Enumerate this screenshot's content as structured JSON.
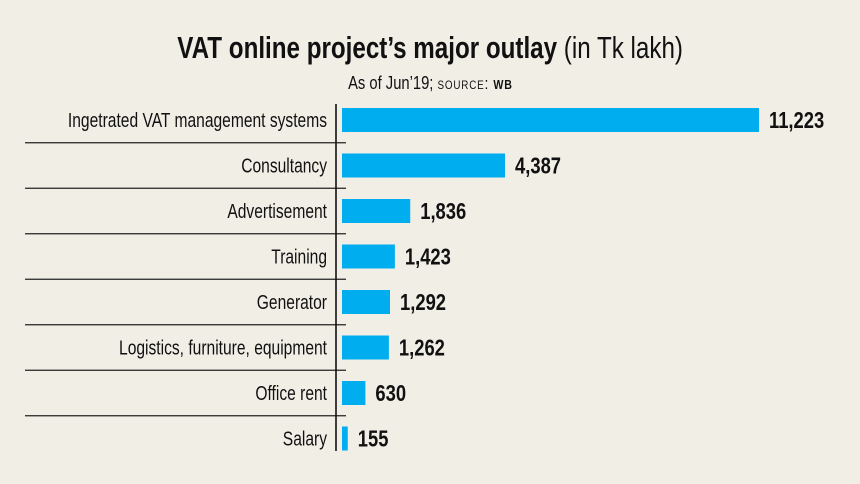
{
  "chart_data": {
    "type": "bar",
    "orientation": "horizontal",
    "title": "VAT online project’s major outlay",
    "title_unit": "(in Tk lakh)",
    "subtitle": "As of Jun’19;",
    "source_label": "source:",
    "source": "WB",
    "categories": [
      "Ingetrated VAT management systems",
      "Consultancy",
      "Advertisement",
      "Training",
      "Generator",
      "Logistics, furniture, equipment",
      "Office rent",
      "Salary"
    ],
    "values": [
      11223,
      4387,
      1836,
      1423,
      1292,
      1262,
      630,
      155
    ],
    "data_labels": [
      "11,223",
      "4,387",
      "1,836",
      "1,423",
      "1,292",
      "1,262",
      "630",
      "155"
    ],
    "xlim": [
      0,
      11223
    ],
    "grid": false,
    "legend": "none",
    "colors": {
      "bar": "#00aeef",
      "background": "#f1eee6",
      "text": "#111111"
    }
  }
}
